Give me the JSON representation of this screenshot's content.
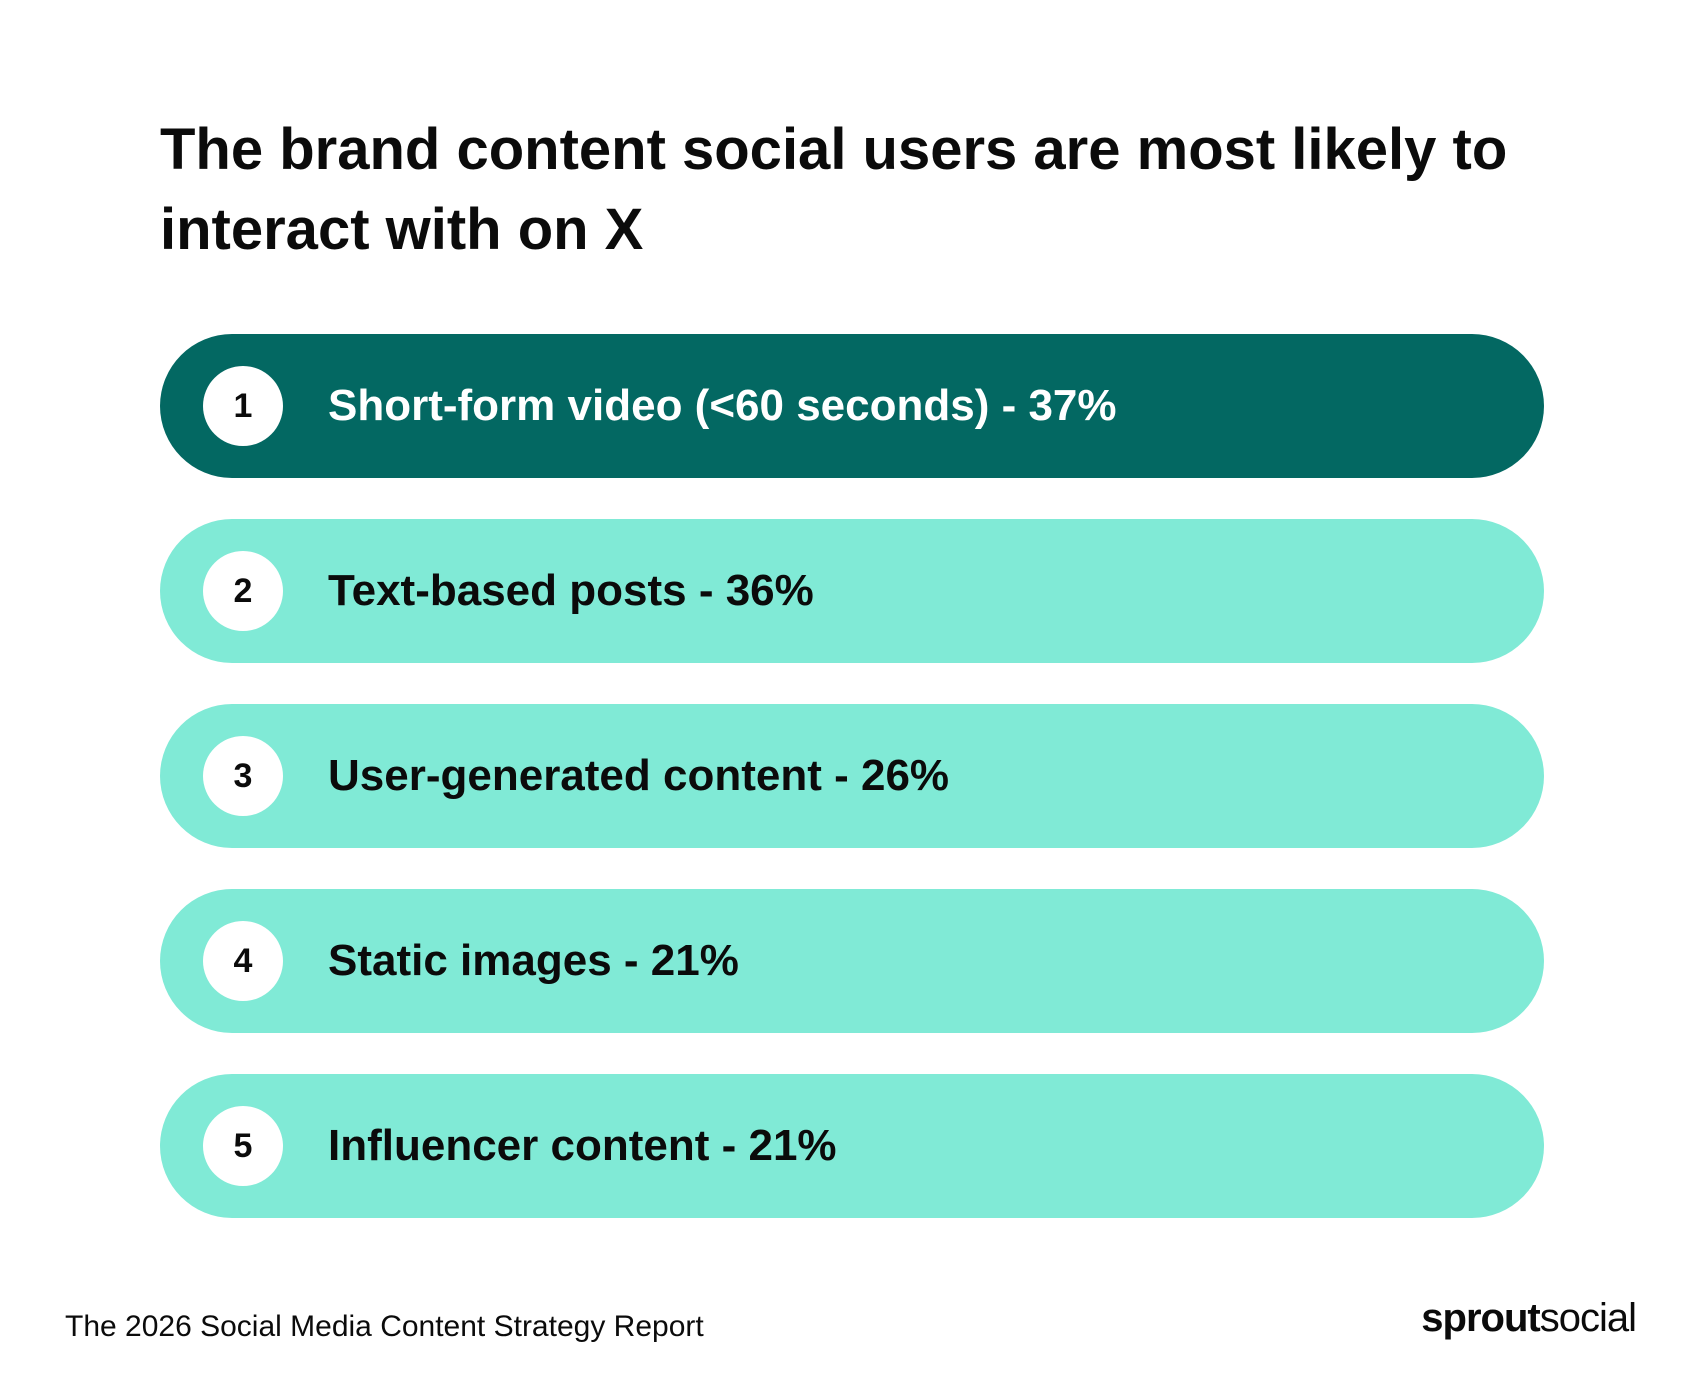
{
  "title": "The brand content social users are most likely to interact with on X",
  "items": [
    {
      "rank": "1",
      "label": "Short-form video (<60 seconds) - 37%"
    },
    {
      "rank": "2",
      "label": "Text-based posts - 36%"
    },
    {
      "rank": "3",
      "label": "User-generated content - 26%"
    },
    {
      "rank": "4",
      "label": "Static images - 21%"
    },
    {
      "rank": "5",
      "label": "Influencer content - 21%"
    }
  ],
  "footer": {
    "report_name": "The 2026 Social Media Content Strategy Report",
    "logo_primary": "sprout",
    "logo_secondary": "social"
  },
  "colors": {
    "top_pill": "#036862",
    "rest_pill": "#80ead6",
    "badge": "#ffffff",
    "text_dark": "#0b0b0b",
    "text_light": "#ffffff"
  }
}
